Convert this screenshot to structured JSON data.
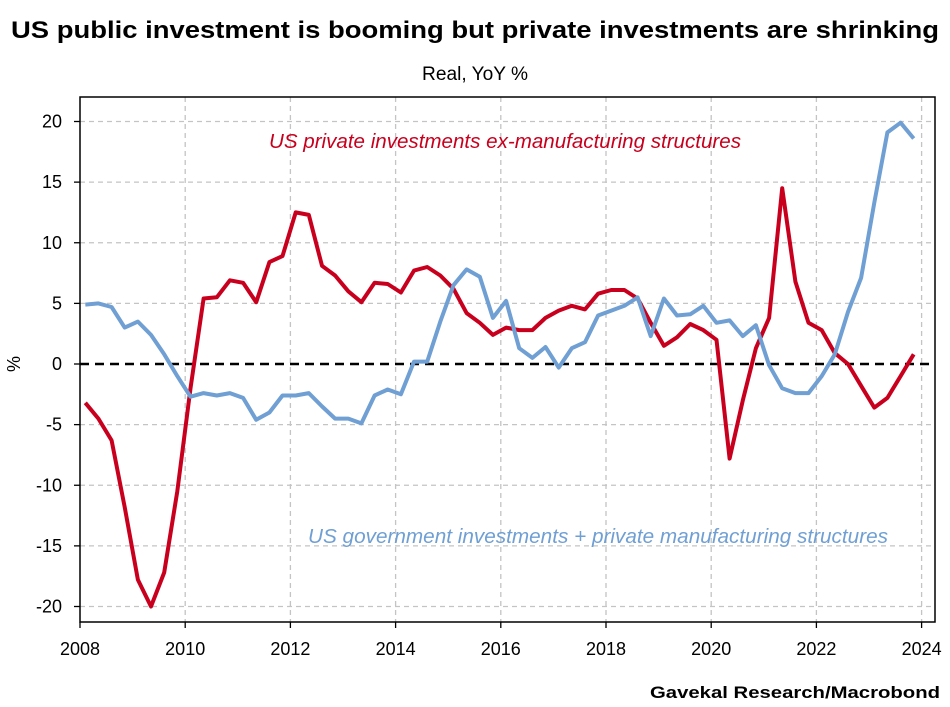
{
  "chart_data": {
    "type": "line",
    "title": "US public investment is booming but private investments are shrinking",
    "subtitle": "Real, YoY %",
    "xlabel": "",
    "ylabel": "%",
    "source": "Gavekal Research/Macrobond",
    "xlim": [
      2008,
      2024.3
    ],
    "ylim": [
      -21.2,
      21.5
    ],
    "grid": true,
    "legend": "inline labels",
    "x_ticks": [
      "2008",
      "2010",
      "2012",
      "2014",
      "2016",
      "2018",
      "2020",
      "2022",
      "2024"
    ],
    "y_ticks": [
      "20",
      "15",
      "10",
      "5",
      "0",
      "-5",
      "-10",
      "-15",
      "-20"
    ],
    "x": [
      2008.1,
      2008.35,
      2008.6,
      2008.85,
      2009.1,
      2009.35,
      2009.6,
      2009.85,
      2010.1,
      2010.35,
      2010.6,
      2010.85,
      2011.1,
      2011.35,
      2011.6,
      2011.85,
      2012.1,
      2012.35,
      2012.6,
      2012.85,
      2013.1,
      2013.35,
      2013.6,
      2013.85,
      2014.1,
      2014.35,
      2014.6,
      2014.85,
      2015.1,
      2015.35,
      2015.6,
      2015.85,
      2016.1,
      2016.35,
      2016.6,
      2016.85,
      2017.1,
      2017.35,
      2017.6,
      2017.85,
      2018.1,
      2018.35,
      2018.6,
      2018.85,
      2019.1,
      2019.35,
      2019.6,
      2019.85,
      2020.1,
      2020.35,
      2020.6,
      2020.85,
      2021.1,
      2021.35,
      2021.6,
      2021.85,
      2022.1,
      2022.35,
      2022.6,
      2022.85,
      2023.1,
      2023.35,
      2023.6,
      2023.85
    ],
    "series": [
      {
        "name": "US private investments ex-manufacturing structures",
        "color": "#c8001e",
        "values": [
          -3.2,
          -4.5,
          -6.3,
          -11.8,
          -17.8,
          -20.0,
          -17.2,
          -10.5,
          -2.0,
          5.4,
          5.5,
          6.9,
          6.7,
          5.1,
          8.4,
          8.9,
          12.5,
          12.3,
          8.1,
          7.3,
          6.0,
          5.1,
          6.7,
          6.6,
          5.9,
          7.7,
          8.0,
          7.3,
          6.2,
          4.2,
          3.4,
          2.4,
          3.0,
          2.8,
          2.8,
          3.8,
          4.4,
          4.8,
          4.5,
          5.8,
          6.1,
          6.1,
          5.4,
          3.4,
          1.5,
          2.2,
          3.3,
          2.8,
          2.0,
          -7.8,
          -3.0,
          1.3,
          3.8,
          14.5,
          6.8,
          3.4,
          2.8,
          0.9,
          0.0,
          -1.8,
          -3.6,
          -2.8,
          -1.0,
          0.8
        ]
      },
      {
        "name": "US government investments + private manufacturing structures",
        "color": "#6f9fd3",
        "values": [
          4.9,
          5.0,
          4.7,
          3.0,
          3.5,
          2.4,
          0.8,
          -1.0,
          -2.7,
          -2.4,
          -2.6,
          -2.4,
          -2.8,
          -4.6,
          -4.0,
          -2.6,
          -2.6,
          -2.4,
          -3.5,
          -4.5,
          -4.5,
          -4.9,
          -2.6,
          -2.1,
          -2.5,
          0.2,
          0.2,
          3.5,
          6.5,
          7.8,
          7.2,
          3.8,
          5.2,
          1.3,
          0.5,
          1.4,
          -0.3,
          1.3,
          1.8,
          4.0,
          4.4,
          4.8,
          5.5,
          2.3,
          5.4,
          4.0,
          4.1,
          4.8,
          3.4,
          3.6,
          2.3,
          3.2,
          -0.1,
          -2.0,
          -2.4,
          -2.4,
          -1.0,
          0.8,
          4.3,
          7.1,
          13.3,
          19.1,
          19.9,
          18.6
        ]
      }
    ]
  }
}
